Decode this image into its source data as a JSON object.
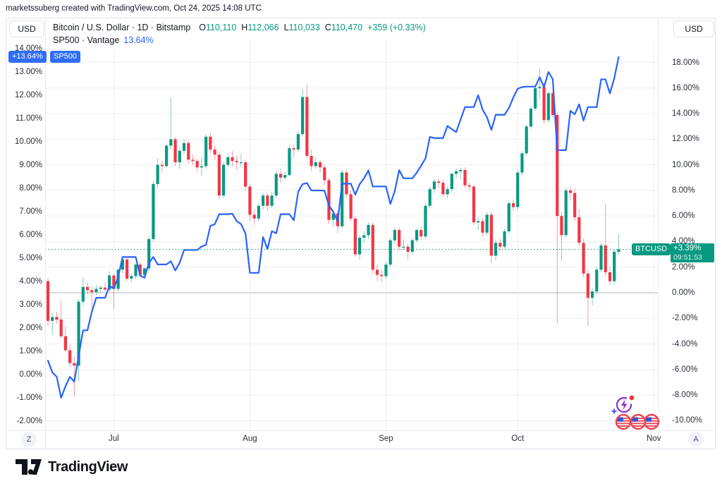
{
  "attribution": "marketssuberg created with TradingView.com, Oct 24, 2025 14:08 UTC",
  "header": {
    "left_currency": "USD",
    "right_currency": "USD",
    "symbol_line": {
      "title": "Bitcoin / U.S. Dollar · 1D · Bitstamp",
      "o_label": "O",
      "o": "110,110",
      "h_label": "H",
      "h": "112,066",
      "l_label": "L",
      "l": "110,033",
      "c_label": "C",
      "c": "110,470",
      "change": "+359 (+0.33%)"
    },
    "compare_line": {
      "title": "SP500 · Vantage",
      "value": "13.64%"
    }
  },
  "scale_labels": {
    "sp500_value": "+13.64%",
    "sp500_name": "SP500",
    "btc_name": "BTCUSD",
    "btc_value": "+3.39%",
    "btc_countdown": "09:51:53"
  },
  "axes": {
    "left_ticks": [
      "14.00%",
      "13.00%",
      "12.00%",
      "11.00%",
      "10.00%",
      "9.00%",
      "8.00%",
      "7.00%",
      "6.00%",
      "5.00%",
      "4.00%",
      "3.00%",
      "2.00%",
      "1.00%",
      "0.00%",
      "-1.00%",
      "-2.00%"
    ],
    "right_ticks": [
      "18.00%",
      "16.00%",
      "14.00%",
      "12.00%",
      "10.00%",
      "8.00%",
      "6.00%",
      "4.00%",
      "2.00%",
      "0.00%",
      "-2.00%",
      "-4.00%",
      "-6.00%",
      "-8.00%",
      "-10.00%"
    ],
    "months": [
      {
        "label": "Jul",
        "i": 15
      },
      {
        "label": "Aug",
        "i": 46
      },
      {
        "label": "Sep",
        "i": 77
      },
      {
        "label": "Oct",
        "i": 107
      },
      {
        "label": "Nov",
        "i": 138
      }
    ],
    "zoom_button": "Z",
    "auto_button": "A"
  },
  "footer": {
    "brand": "TradingView"
  },
  "colors": {
    "up": "#089981",
    "down": "#f23645",
    "line_blue": "#2962ff",
    "grid": "#eceff5",
    "zero_line": "#b2b5be",
    "dotted_last": "#089981",
    "text": "#131722",
    "border": "#e0e3eb",
    "label_blue": "#2f6df6"
  },
  "chart_data": {
    "type": "candlestick+line",
    "title": "Bitcoin / U.S. Dollar (1D, Bitstamp) vs SP500 (Vantage) — percent change comparison, mid-June to Oct 24, 2025",
    "legend": [
      "BTCUSD candles (right % scale)",
      "SP500 line (left % scale)"
    ],
    "grid": "on",
    "x_axis": {
      "tick_labels": [
        "Jul",
        "Aug",
        "Sep",
        "Oct",
        "Nov"
      ],
      "days_total": 131
    },
    "left_axis": {
      "series": "SP500",
      "min": -2,
      "max": 14,
      "step": 1,
      "unit": "%"
    },
    "right_axis": {
      "series": "BTCUSD",
      "min": -10,
      "max": 18,
      "step": 2,
      "unit": "%"
    },
    "btc": {
      "name": "BTCUSD",
      "axis": "right",
      "unit": "percent_change",
      "last_value": 3.39,
      "last_ohlc": {
        "open": 110110,
        "high": 112066,
        "low": 110033,
        "close": 110470,
        "change": "+359 (+0.33%)"
      },
      "candles": [
        [
          0.9,
          1.1,
          -2.6,
          -2.2
        ],
        [
          -2.2,
          -1.6,
          -3.3,
          -1.9
        ],
        [
          -1.9,
          -1.5,
          -2.4,
          -2.1
        ],
        [
          -2.1,
          -0.6,
          -3.6,
          -3.4
        ],
        [
          -3.4,
          -2.6,
          -4.6,
          -4.5
        ],
        [
          -4.5,
          -4,
          -5.8,
          -5.5
        ],
        [
          -5.5,
          -5,
          -8.1,
          -5.7
        ],
        [
          -5.7,
          -0.5,
          -6.9,
          -0.7
        ],
        [
          -0.7,
          1.2,
          -1,
          0.45
        ],
        [
          0.45,
          0.8,
          -0.1,
          0.2
        ],
        [
          0.2,
          0.5,
          -1.4,
          0.05
        ],
        [
          0.05,
          0.6,
          -0.2,
          0.3
        ],
        [
          0.3,
          0.55,
          0,
          0.4
        ],
        [
          0.4,
          0.8,
          0.1,
          0.25
        ],
        [
          0.25,
          1.7,
          0.1,
          1.35
        ],
        [
          1.35,
          1.5,
          -1.3,
          0.3
        ],
        [
          0.3,
          1.9,
          0.1,
          1.8
        ],
        [
          1.8,
          2.85,
          1.5,
          2.6
        ],
        [
          2.6,
          2.7,
          0.9,
          1.1
        ],
        [
          1.1,
          1.5,
          0.8,
          1.3
        ],
        [
          1.3,
          2.3,
          1.1,
          2.2
        ],
        [
          2.2,
          2.4,
          1.2,
          1.4
        ],
        [
          1.4,
          2,
          1.2,
          1.9
        ],
        [
          1.9,
          4.4,
          1.7,
          4.2
        ],
        [
          4.2,
          8.7,
          4,
          8.5
        ],
        [
          8.5,
          10.5,
          8.2,
          10
        ],
        [
          10,
          10.3,
          9.4,
          9.9
        ],
        [
          9.9,
          11.6,
          9.8,
          11.5
        ],
        [
          11.5,
          15.3,
          11.2,
          12
        ],
        [
          12,
          12.2,
          9.9,
          10.2
        ],
        [
          10.2,
          11.3,
          9.7,
          11.1
        ],
        [
          11.1,
          12,
          10.8,
          11.7
        ],
        [
          11.7,
          11.9,
          10.1,
          10.4
        ],
        [
          10.4,
          10.8,
          10,
          10.3
        ],
        [
          10.3,
          10.5,
          9.5,
          9.8
        ],
        [
          9.8,
          10.6,
          9.1,
          9.9
        ],
        [
          9.9,
          12.4,
          9.7,
          12.2
        ],
        [
          12.2,
          12.5,
          10.9,
          11.2
        ],
        [
          11.2,
          11.5,
          10.4,
          10.8
        ],
        [
          10.8,
          11,
          7.3,
          7.6
        ],
        [
          7.6,
          10.2,
          7.4,
          10
        ],
        [
          10,
          10.9,
          9.8,
          10.6
        ],
        [
          10.6,
          11.1,
          9.9,
          10.3
        ],
        [
          10.3,
          10.7,
          9.6,
          10.2
        ],
        [
          10.2,
          10.9,
          9.8,
          10.2
        ],
        [
          10.2,
          10.4,
          8,
          8.3
        ],
        [
          8.3,
          8.5,
          5.6,
          6.1
        ],
        [
          6.1,
          6.5,
          5.3,
          5.8
        ],
        [
          5.8,
          7,
          5.6,
          6.8
        ],
        [
          6.8,
          7.8,
          6.5,
          7.6
        ],
        [
          7.6,
          7.8,
          6.4,
          6.8
        ],
        [
          6.8,
          7.9,
          6.6,
          7.6
        ],
        [
          7.6,
          9.5,
          7.4,
          9.3
        ],
        [
          9.3,
          9.7,
          8.6,
          9
        ],
        [
          9,
          9.5,
          8.8,
          9.2
        ],
        [
          9.2,
          11.5,
          9.1,
          11.3
        ],
        [
          11.3,
          11.6,
          10.6,
          11.2
        ],
        [
          11.2,
          12.6,
          11,
          12.4
        ],
        [
          12.4,
          15.9,
          12.2,
          15.3
        ],
        [
          15.3,
          16.3,
          10.5,
          10.7
        ],
        [
          10.7,
          11.2,
          9.5,
          9.9
        ],
        [
          9.9,
          10.6,
          9.7,
          10.2
        ],
        [
          10.2,
          10.4,
          9.4,
          9.8
        ],
        [
          9.8,
          10,
          8.4,
          8.8
        ],
        [
          8.8,
          9,
          5.4,
          5.7
        ],
        [
          5.7,
          6.5,
          5.2,
          6.2
        ],
        [
          6.2,
          6.4,
          4.6,
          5.2
        ],
        [
          5.2,
          9.6,
          5,
          9.4
        ],
        [
          9.4,
          9.6,
          7.5,
          7.7
        ],
        [
          7.7,
          8,
          5.6,
          5.8
        ],
        [
          5.8,
          6,
          2.8,
          3
        ],
        [
          3,
          4.5,
          2.6,
          4.3
        ],
        [
          4.3,
          4.8,
          3.9,
          4.5
        ],
        [
          4.5,
          5.5,
          4.2,
          5.3
        ],
        [
          5.3,
          5.5,
          1.5,
          1.8
        ],
        [
          1.8,
          2.2,
          0.9,
          1.4
        ],
        [
          1.4,
          1.8,
          0.8,
          1.3
        ],
        [
          1.3,
          2.4,
          1.1,
          2.2
        ],
        [
          2.2,
          4.3,
          2,
          4.1
        ],
        [
          4.1,
          5.1,
          3.8,
          4.9
        ],
        [
          4.9,
          5.1,
          3.3,
          3.6
        ],
        [
          3.6,
          4.2,
          3.3,
          3.6
        ],
        [
          3.6,
          3.8,
          2.6,
          3.2
        ],
        [
          3.2,
          4.3,
          3,
          4.1
        ],
        [
          4.1,
          5.1,
          3.9,
          4.9
        ],
        [
          4.9,
          5.2,
          4.1,
          4.4
        ],
        [
          4.4,
          7,
          4.2,
          6.8
        ],
        [
          6.8,
          8.3,
          6.6,
          8.1
        ],
        [
          8.1,
          8.9,
          7.8,
          8.7
        ],
        [
          8.7,
          8.9,
          8.2,
          8.6
        ],
        [
          8.6,
          8.8,
          7.5,
          7.7
        ],
        [
          7.7,
          8.3,
          7.4,
          8.1
        ],
        [
          8.1,
          9.4,
          7.9,
          9.3
        ],
        [
          9.3,
          9.7,
          9,
          9.5
        ],
        [
          9.5,
          9.8,
          8.9,
          9.6
        ],
        [
          9.6,
          9.8,
          8.2,
          8.4
        ],
        [
          8.4,
          8.6,
          8,
          8.3
        ],
        [
          8.3,
          8.4,
          5.3,
          5.5
        ],
        [
          5.5,
          5.9,
          4.9,
          5.6
        ],
        [
          5.6,
          5.8,
          4.4,
          4.7
        ],
        [
          4.7,
          6.3,
          4.5,
          6.1
        ],
        [
          6.1,
          6.3,
          2.3,
          2.9
        ],
        [
          2.9,
          4.1,
          2.5,
          3.9
        ],
        [
          3.9,
          4.2,
          3.3,
          3.6
        ],
        [
          3.6,
          5,
          3.4,
          4.8
        ],
        [
          4.8,
          7.2,
          4.6,
          7
        ],
        [
          7,
          7.3,
          6.4,
          6.7
        ],
        [
          6.7,
          9.6,
          6.5,
          9.4
        ],
        [
          9.4,
          11.1,
          9.2,
          10.9
        ],
        [
          10.9,
          13.2,
          10.7,
          13
        ],
        [
          13,
          14.6,
          12.8,
          14.4
        ],
        [
          14.4,
          16.2,
          14.2,
          16
        ],
        [
          16,
          17.5,
          15.2,
          16.1
        ],
        [
          16.1,
          16.4,
          13.2,
          13.5
        ],
        [
          13.5,
          15.7,
          13.3,
          15.6
        ],
        [
          15.6,
          15.8,
          13.7,
          13.9
        ],
        [
          13.9,
          14.1,
          -2.4,
          6
        ],
        [
          6,
          6.3,
          2.5,
          4.5
        ],
        [
          4.5,
          8.2,
          4.3,
          8
        ],
        [
          8,
          8.3,
          7.2,
          7.8
        ],
        [
          7.8,
          8.1,
          5.6,
          5.9
        ],
        [
          5.9,
          6.5,
          3.6,
          3.9
        ],
        [
          3.9,
          4.2,
          1.2,
          1.5
        ],
        [
          1.5,
          1.8,
          -2.6,
          -0.4
        ],
        [
          -0.4,
          0.4,
          -1,
          0.1
        ],
        [
          0.1,
          2,
          -0.1,
          1.8
        ],
        [
          1.8,
          3.9,
          1.6,
          3.7
        ],
        [
          3.7,
          6.9,
          1.3,
          1.6
        ],
        [
          1.6,
          2.1,
          0.6,
          0.9
        ],
        [
          0.9,
          3.4,
          0.7,
          3.2
        ],
        [
          3.2,
          4.6,
          3,
          3.39
        ]
      ]
    },
    "sp500": {
      "name": "SP500",
      "axis": "left",
      "unit": "percent_change",
      "last_value": 13.64,
      "values": [
        0.6,
        0.1,
        -0.1,
        -1.0,
        -0.5,
        -0.1,
        -0.3,
        0.8,
        1.9,
        1.9,
        2.7,
        3.3,
        3.3,
        3.3,
        3.8,
        3.7,
        4.2,
        5.05,
        5.05,
        5.05,
        5.05,
        4.25,
        4.16,
        4.8,
        5.05,
        4.73,
        4.73,
        4.73,
        4.87,
        4.47,
        4.8,
        5.35,
        5.35,
        5.35,
        5.35,
        5.5,
        5.57,
        6.39,
        6.46,
        6.89,
        6.89,
        6.89,
        6.91,
        6.59,
        6.46,
        6.06,
        4.37,
        4.37,
        4.37,
        5.91,
        5.39,
        6.16,
        6.07,
        6.89,
        6.89,
        6.89,
        6.63,
        7.85,
        8.18,
        8.23,
        7.91,
        7.91,
        7.91,
        7.9,
        7.26,
        6.99,
        6.58,
        8.2,
        8.2,
        8.2,
        7.73,
        8.18,
        8.43,
        8.77,
        8.08,
        8.08,
        8.08,
        8.08,
        7.33,
        7.88,
        8.78,
        8.43,
        8.43,
        8.43,
        8.67,
        8.97,
        9.29,
        10.21,
        10.16,
        10.16,
        10.16,
        10.68,
        10.54,
        10.42,
        10.96,
        11.49,
        11.49,
        11.49,
        12.0,
        11.38,
        11.06,
        10.51,
        11.16,
        11.16,
        11.16,
        11.45,
        11.9,
        12.28,
        12.35,
        12.37,
        12.37,
        12.37,
        12.77,
        12.35,
        13.0,
        12.68,
        9.64,
        9.64,
        9.64,
        11.33,
        11.18,
        11.61,
        10.91,
        11.49,
        11.49,
        11.49,
        12.68,
        12.68,
        12.08,
        12.73,
        13.64
      ]
    }
  }
}
